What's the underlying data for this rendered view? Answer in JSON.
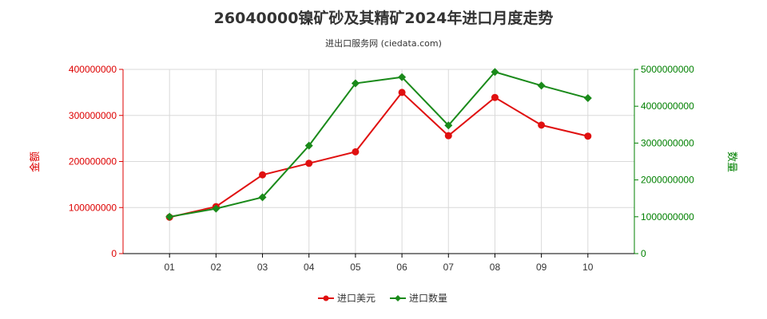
{
  "chart_data": {
    "type": "line",
    "title": "26040000镍矿砂及其精矿2024年进口月度走势",
    "subtitle": "进出口服务网 (ciedata.com)",
    "categories": [
      "01",
      "02",
      "03",
      "04",
      "05",
      "06",
      "07",
      "08",
      "09",
      "10"
    ],
    "y_left": {
      "label": "金额",
      "ticks": [
        "0",
        "100000000",
        "200000000",
        "300000000",
        "400000000"
      ],
      "range": [
        0,
        400000000
      ],
      "color": "#dd0000"
    },
    "y_right": {
      "label": "数量",
      "ticks": [
        "0",
        "1000000000",
        "2000000000",
        "3000000000",
        "4000000000",
        "5000000000"
      ],
      "range": [
        0,
        5000000000
      ],
      "color": "#008000"
    },
    "series": [
      {
        "name": "进口美元",
        "axis": "left",
        "color": "#e01010",
        "marker": "circle",
        "values": [
          79000000,
          102000000,
          171000000,
          196000000,
          221000000,
          350000000,
          256000000,
          339000000,
          279000000,
          255000000
        ]
      },
      {
        "name": "进口数量",
        "axis": "right",
        "color": "#1a8a1a",
        "marker": "diamond",
        "values": [
          1000000000,
          1220000000,
          1530000000,
          2930000000,
          4620000000,
          4790000000,
          3480000000,
          4930000000,
          4560000000,
          4220000000
        ]
      }
    ],
    "legend_position": "bottom",
    "grid": true
  }
}
